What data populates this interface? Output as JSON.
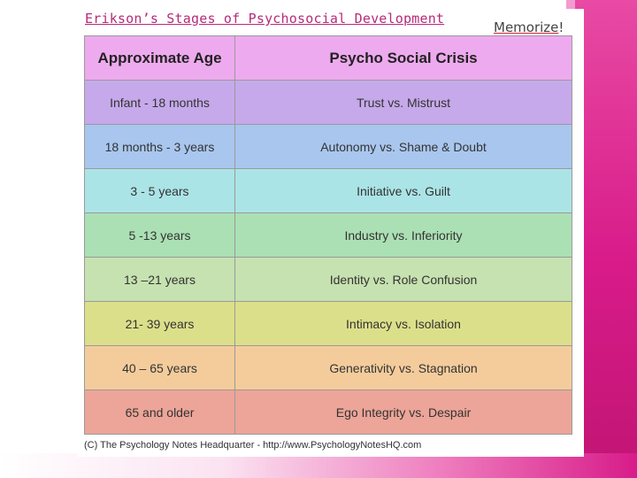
{
  "slide": {
    "title": "Erikson’s Stages of Psychosocial Development",
    "note_word": "Memorize",
    "note_punct": "!"
  },
  "table": {
    "headers": [
      "Approximate Age",
      "Psycho Social Crisis"
    ],
    "header_color": "#eeaaee",
    "rows": [
      {
        "age": "Infant - 18 months",
        "crisis": "Trust vs. Mistrust",
        "color": "#c6a9ea"
      },
      {
        "age": "18 months - 3 years",
        "crisis": "Autonomy vs. Shame & Doubt",
        "color": "#a9c6ee"
      },
      {
        "age": "3 - 5 years",
        "crisis": "Initiative vs. Guilt",
        "color": "#abe4e6"
      },
      {
        "age": "5 -13 years",
        "crisis": "Industry vs. Inferiority",
        "color": "#abe0b4"
      },
      {
        "age": "13 –21 years",
        "crisis": "Identity vs. Role Confusion",
        "color": "#c6e2b0"
      },
      {
        "age": "21- 39 years",
        "crisis": "Intimacy vs. Isolation",
        "color": "#dcdf8a"
      },
      {
        "age": "40 – 65 years",
        "crisis": "Generativity vs. Stagnation",
        "color": "#f4cc9c"
      },
      {
        "age": "65 and older",
        "crisis": "Ego Integrity vs. Despair",
        "color": "#eca598"
      }
    ],
    "credit": "(C) The Psychology Notes Headquarter - http://www.PsychologyNotesHQ.com"
  },
  "theme": {
    "accent": "#d81b89",
    "title_color": "#b72a7a"
  }
}
